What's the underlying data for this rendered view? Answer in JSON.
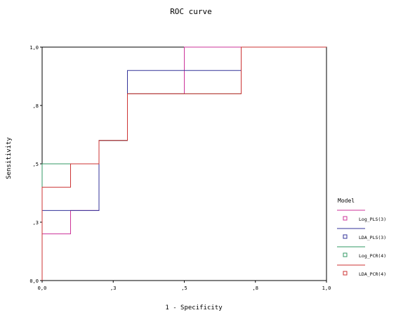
{
  "chart_data": {
    "type": "line",
    "title": "ROC curve",
    "xlabel": "1 - Specificity",
    "ylabel": "Sensitivity",
    "xlim": [
      0,
      1
    ],
    "ylim": [
      0,
      1
    ],
    "x_tick_labels": [
      "0,0",
      ",3",
      ",5",
      ",8",
      "1,0"
    ],
    "x_tick_values": [
      0,
      0.25,
      0.5,
      0.75,
      1.0
    ],
    "y_tick_labels": [
      "0,0",
      ",3",
      ",5",
      ",8",
      "1,0"
    ],
    "y_tick_values": [
      0,
      0.25,
      0.5,
      0.75,
      1.0
    ],
    "grid": false,
    "legend_title": "Model",
    "legend_position": "right",
    "series": [
      {
        "name": "Log_PLS(3)",
        "color": "#cc3399",
        "x": [
          0,
          0,
          0.1,
          0.1,
          0.2,
          0.2,
          0.3,
          0.3,
          0.5,
          0.5,
          1.0
        ],
        "y": [
          0,
          0.2,
          0.2,
          0.3,
          0.3,
          0.6,
          0.6,
          0.8,
          0.8,
          1.0,
          1.0
        ]
      },
      {
        "name": "LDA_PLS(3)",
        "color": "#333399",
        "x": [
          0,
          0,
          0.2,
          0.2,
          0.3,
          0.3,
          0.7,
          0.7,
          1.0
        ],
        "y": [
          0,
          0.3,
          0.3,
          0.6,
          0.6,
          0.9,
          0.9,
          1.0,
          1.0
        ]
      },
      {
        "name": "Log_PCR(4)",
        "color": "#339966",
        "x": [
          0,
          0,
          0.2,
          0.2,
          0.3,
          0.3,
          0.7,
          0.7,
          1.0
        ],
        "y": [
          0,
          0.5,
          0.5,
          0.6,
          0.6,
          0.8,
          0.8,
          1.0,
          1.0
        ]
      },
      {
        "name": "LDA_PCR(4)",
        "color": "#cc3333",
        "x": [
          0,
          0,
          0.1,
          0.1,
          0.2,
          0.2,
          0.3,
          0.3,
          0.7,
          0.7,
          1.0
        ],
        "y": [
          0,
          0.4,
          0.4,
          0.5,
          0.5,
          0.6,
          0.6,
          0.8,
          0.8,
          1.0,
          1.0
        ]
      }
    ]
  }
}
